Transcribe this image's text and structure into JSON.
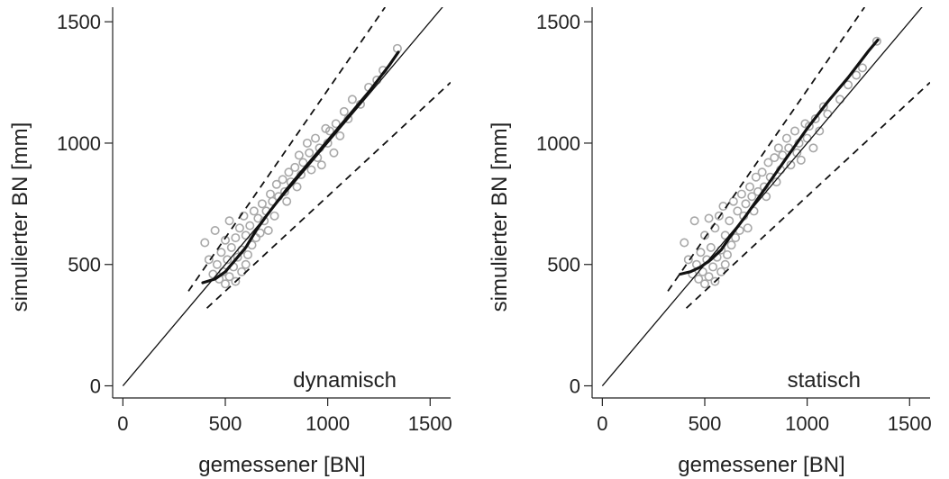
{
  "chart_data": [
    {
      "type": "scatter",
      "annotation": "dynamisch",
      "xlabel": "gemessener [BN]",
      "ylabel": "simulierter BN [mm]",
      "xlim": [
        -50,
        1600
      ],
      "ylim": [
        -50,
        1560
      ],
      "xticks": [
        "0",
        "500",
        "1000",
        "1500"
      ],
      "yticks": [
        "0",
        "500",
        "1000",
        "1500"
      ],
      "grid": false,
      "reference_lines": {
        "one_to_one": [
          [
            0,
            0
          ],
          [
            1600,
            1600
          ]
        ],
        "upper_bound": [
          [
            320,
            390
          ],
          [
            1280,
            1560
          ]
        ],
        "lower_bound": [
          [
            410,
            320
          ],
          [
            1600,
            1250
          ]
        ]
      },
      "fit_curve": [
        [
          390,
          425
        ],
        [
          450,
          440
        ],
        [
          500,
          470
        ],
        [
          550,
          520
        ],
        [
          600,
          570
        ],
        [
          650,
          640
        ],
        [
          700,
          700
        ],
        [
          800,
          810
        ],
        [
          900,
          910
        ],
        [
          1000,
          1010
        ],
        [
          1100,
          1110
        ],
        [
          1200,
          1210
        ],
        [
          1300,
          1320
        ],
        [
          1345,
          1375
        ]
      ],
      "points": [
        [
          400,
          590
        ],
        [
          420,
          520
        ],
        [
          440,
          460
        ],
        [
          450,
          640
        ],
        [
          460,
          500
        ],
        [
          470,
          440
        ],
        [
          480,
          550
        ],
        [
          490,
          470
        ],
        [
          500,
          420
        ],
        [
          500,
          600
        ],
        [
          510,
          520
        ],
        [
          520,
          450
        ],
        [
          520,
          680
        ],
        [
          530,
          570
        ],
        [
          540,
          490
        ],
        [
          550,
          610
        ],
        [
          550,
          430
        ],
        [
          560,
          530
        ],
        [
          570,
          650
        ],
        [
          580,
          470
        ],
        [
          580,
          560
        ],
        [
          590,
          700
        ],
        [
          600,
          620
        ],
        [
          600,
          500
        ],
        [
          610,
          540
        ],
        [
          620,
          660
        ],
        [
          630,
          580
        ],
        [
          640,
          720
        ],
        [
          650,
          610
        ],
        [
          660,
          690
        ],
        [
          670,
          630
        ],
        [
          680,
          750
        ],
        [
          690,
          680
        ],
        [
          700,
          720
        ],
        [
          710,
          640
        ],
        [
          720,
          790
        ],
        [
          730,
          760
        ],
        [
          740,
          700
        ],
        [
          750,
          830
        ],
        [
          760,
          780
        ],
        [
          780,
          850
        ],
        [
          790,
          800
        ],
        [
          800,
          760
        ],
        [
          810,
          880
        ],
        [
          820,
          840
        ],
        [
          840,
          900
        ],
        [
          850,
          820
        ],
        [
          860,
          950
        ],
        [
          870,
          870
        ],
        [
          880,
          920
        ],
        [
          900,
          1000
        ],
        [
          910,
          960
        ],
        [
          920,
          890
        ],
        [
          940,
          1020
        ],
        [
          950,
          940
        ],
        [
          960,
          980
        ],
        [
          970,
          910
        ],
        [
          990,
          1060
        ],
        [
          1000,
          1000
        ],
        [
          1010,
          1050
        ],
        [
          1030,
          960
        ],
        [
          1040,
          1080
        ],
        [
          1060,
          1030
        ],
        [
          1080,
          1130
        ],
        [
          1100,
          1100
        ],
        [
          1120,
          1180
        ],
        [
          1160,
          1160
        ],
        [
          1200,
          1230
        ],
        [
          1240,
          1260
        ],
        [
          1270,
          1300
        ],
        [
          1340,
          1390
        ]
      ]
    },
    {
      "type": "scatter",
      "annotation": "statisch",
      "xlabel": "gemessener [BN]",
      "ylabel": "simulierter BN [mm]",
      "xlim": [
        -50,
        1600
      ],
      "ylim": [
        -50,
        1560
      ],
      "xticks": [
        "0",
        "500",
        "1000",
        "1500"
      ],
      "yticks": [
        "0",
        "500",
        "1000",
        "1500"
      ],
      "grid": false,
      "reference_lines": {
        "one_to_one": [
          [
            0,
            0
          ],
          [
            1600,
            1600
          ]
        ],
        "upper_bound": [
          [
            320,
            390
          ],
          [
            1280,
            1560
          ]
        ],
        "lower_bound": [
          [
            410,
            320
          ],
          [
            1600,
            1250
          ]
        ]
      },
      "fit_curve": [
        [
          380,
          460
        ],
        [
          430,
          470
        ],
        [
          480,
          490
        ],
        [
          530,
          520
        ],
        [
          580,
          560
        ],
        [
          620,
          610
        ],
        [
          700,
          700
        ],
        [
          800,
          820
        ],
        [
          900,
          940
        ],
        [
          1000,
          1060
        ],
        [
          1100,
          1170
        ],
        [
          1200,
          1270
        ],
        [
          1300,
          1380
        ],
        [
          1345,
          1425
        ]
      ],
      "points": [
        [
          400,
          590
        ],
        [
          420,
          520
        ],
        [
          440,
          460
        ],
        [
          450,
          680
        ],
        [
          460,
          500
        ],
        [
          470,
          440
        ],
        [
          480,
          550
        ],
        [
          490,
          470
        ],
        [
          500,
          420
        ],
        [
          500,
          620
        ],
        [
          510,
          520
        ],
        [
          520,
          450
        ],
        [
          520,
          690
        ],
        [
          530,
          570
        ],
        [
          540,
          490
        ],
        [
          550,
          650
        ],
        [
          550,
          430
        ],
        [
          560,
          530
        ],
        [
          570,
          700
        ],
        [
          580,
          470
        ],
        [
          580,
          560
        ],
        [
          590,
          740
        ],
        [
          600,
          620
        ],
        [
          600,
          500
        ],
        [
          610,
          540
        ],
        [
          620,
          680
        ],
        [
          630,
          580
        ],
        [
          640,
          760
        ],
        [
          650,
          610
        ],
        [
          660,
          720
        ],
        [
          670,
          640
        ],
        [
          680,
          790
        ],
        [
          690,
          700
        ],
        [
          700,
          750
        ],
        [
          710,
          650
        ],
        [
          720,
          820
        ],
        [
          730,
          780
        ],
        [
          740,
          720
        ],
        [
          750,
          860
        ],
        [
          760,
          800
        ],
        [
          780,
          880
        ],
        [
          790,
          820
        ],
        [
          800,
          780
        ],
        [
          810,
          920
        ],
        [
          820,
          860
        ],
        [
          840,
          940
        ],
        [
          850,
          840
        ],
        [
          860,
          980
        ],
        [
          870,
          890
        ],
        [
          880,
          950
        ],
        [
          900,
          1020
        ],
        [
          910,
          980
        ],
        [
          920,
          910
        ],
        [
          940,
          1050
        ],
        [
          950,
          960
        ],
        [
          960,
          1000
        ],
        [
          970,
          930
        ],
        [
          990,
          1080
        ],
        [
          1000,
          1020
        ],
        [
          1010,
          1070
        ],
        [
          1030,
          980
        ],
        [
          1040,
          1100
        ],
        [
          1060,
          1050
        ],
        [
          1080,
          1150
        ],
        [
          1100,
          1120
        ],
        [
          1160,
          1180
        ],
        [
          1200,
          1240
        ],
        [
          1240,
          1280
        ],
        [
          1270,
          1310
        ],
        [
          1340,
          1420
        ]
      ]
    }
  ]
}
